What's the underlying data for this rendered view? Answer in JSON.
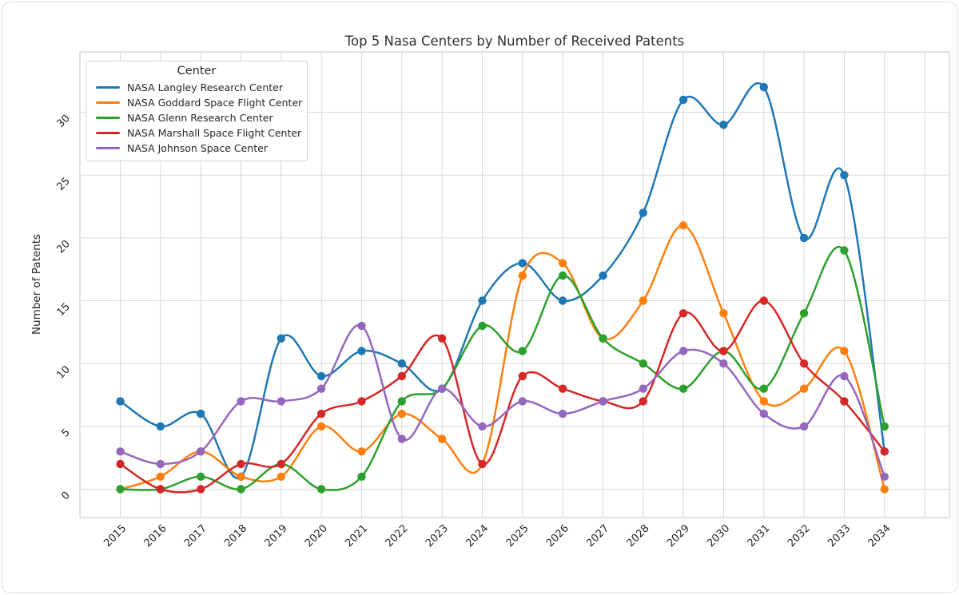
{
  "chart_data": {
    "type": "line",
    "title": "Top 5 Nasa Centers by Number of Received Patents",
    "xlabel": "",
    "ylabel": "Number of Patents",
    "legend_title": "Center",
    "legend_position": "upper left",
    "grid": true,
    "line_style": "smooth-spline-with-markers",
    "x": [
      2015,
      2016,
      2017,
      2018,
      2019,
      2020,
      2021,
      2022,
      2023,
      2024,
      2025,
      2026,
      2027,
      2028,
      2029,
      2030,
      2031,
      2032,
      2033,
      2034
    ],
    "yticks": [
      0,
      5,
      10,
      15,
      20,
      25,
      30
    ],
    "ylim": [
      -2.3,
      34.8
    ],
    "xlim": [
      2014.0,
      2035.7
    ],
    "series": [
      {
        "name": "NASA Langley Research Center",
        "color": "#1f77b4",
        "values": [
          7,
          5,
          6,
          1,
          12,
          9,
          11,
          10,
          8,
          15,
          18,
          15,
          17,
          22,
          31,
          29,
          32,
          20,
          25,
          3
        ]
      },
      {
        "name": "NASA Goddard Space Flight Center",
        "color": "#ff7f0e",
        "values": [
          0,
          1,
          3,
          1,
          1,
          5,
          3,
          6,
          4,
          2,
          17,
          18,
          12,
          15,
          21,
          14,
          7,
          8,
          11,
          0
        ]
      },
      {
        "name": "NASA Glenn Research Center",
        "color": "#2ca02c",
        "values": [
          0,
          0,
          1,
          0,
          2,
          0,
          1,
          7,
          8,
          13,
          11,
          17,
          12,
          10,
          8,
          11,
          8,
          14,
          19,
          5
        ]
      },
      {
        "name": "NASA Marshall Space Flight Center",
        "color": "#d62728",
        "values": [
          2,
          0,
          0,
          2,
          2,
          6,
          7,
          9,
          12,
          2,
          9,
          8,
          7,
          7,
          14,
          11,
          15,
          10,
          7,
          3
        ]
      },
      {
        "name": "NASA Johnson Space Center",
        "color": "#9467bd",
        "values": [
          3,
          2,
          3,
          7,
          7,
          8,
          13,
          4,
          8,
          5,
          7,
          6,
          7,
          8,
          11,
          10,
          6,
          5,
          9,
          1
        ]
      }
    ],
    "colors": {
      "grid": "#d9d9d9",
      "spine": "#cfcfcf",
      "text": "#262626",
      "background": "#ffffff"
    }
  }
}
